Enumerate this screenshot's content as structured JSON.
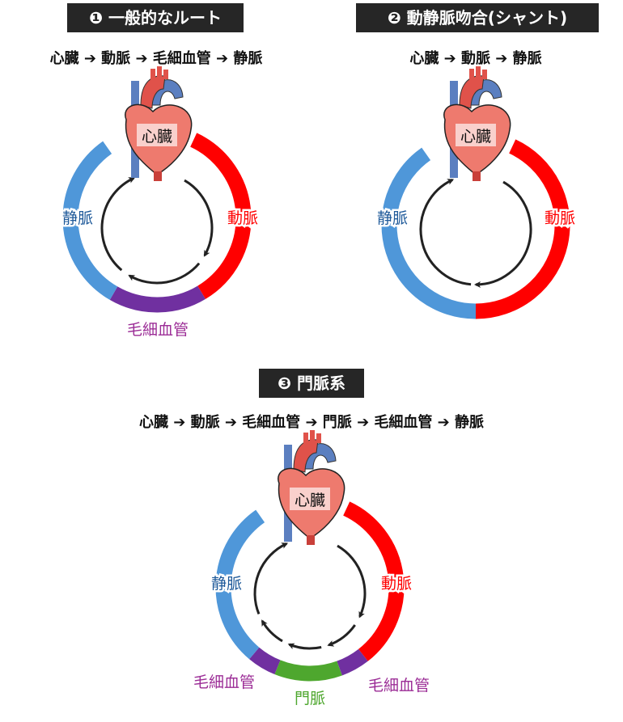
{
  "diagrams": [
    {
      "title": "❶ 一般的なルート",
      "route": "心臓 ➔ 動脈 ➔ 毛細血管 ➔ 静脈",
      "heart": "心臓",
      "labels": {
        "vein": "静脈",
        "artery": "動脈",
        "capillary": "毛細血管"
      }
    },
    {
      "title": "❷ 動静脈吻合(シャント)",
      "route": "心臓 ➔ 動脈 ➔ 静脈",
      "heart": "心臓",
      "labels": {
        "vein": "静脈",
        "artery": "動脈"
      }
    },
    {
      "title": "❸ 門脈系",
      "route": "心臓 ➔ 動脈 ➔ 毛細血管 ➔ 門脈 ➔ 毛細血管 ➔ 静脈",
      "heart": "心臓",
      "labels": {
        "vein": "静脈",
        "artery": "動脈",
        "capillary_left": "毛細血管",
        "capillary_right": "毛細血管",
        "portal": "門脈"
      }
    }
  ],
  "colors": {
    "artery": "#ff0000",
    "vein": "#4f97d9",
    "capillary": "#7030a0",
    "portal": "#4ea72e",
    "vein_text": "#1f5a9a",
    "capillary_text": "#9b2c96",
    "arrow": "#222222"
  }
}
